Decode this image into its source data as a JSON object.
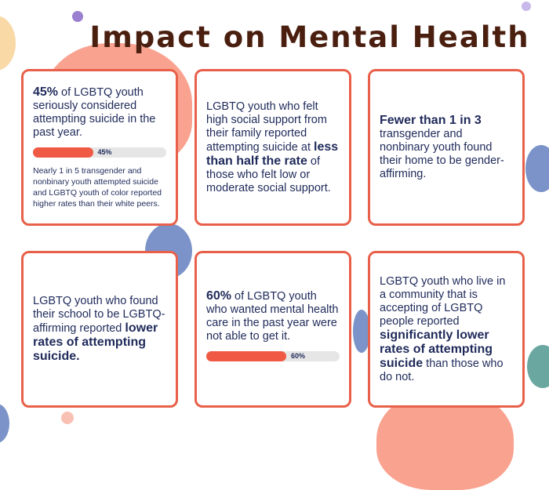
{
  "title": "Impact on Mental Health",
  "colors": {
    "accent": "#e8604a",
    "title": "#4a1f0f",
    "text": "#1f2a5a",
    "bar_fill": "#f05a45",
    "bar_track": "#e6e6e6"
  },
  "cards": [
    {
      "stat": "45%",
      "text": " of LGBTQ youth seriously considered attempting suicide in the past year.",
      "bar_value": 0.45,
      "bar_label": "45%",
      "note": "Nearly 1 in 5 transgender and nonbinary youth attempted suicide and LGBTQ youth of color reported higher rates than their white peers."
    },
    {
      "text_a": "LGBTQ youth who felt high social support from their family reported attempting suicide at ",
      "bold": "less than half the rate",
      "text_b": " of those who felt low or moderate social support."
    },
    {
      "stat": "Fewer than 1 in 3",
      "text": "transgender and nonbinary youth found their home to be gender-affirming."
    },
    {
      "text_a": "LGBTQ youth who found their school to be LGBTQ-affirming reported ",
      "bold": "lower rates of attempting suicide."
    },
    {
      "stat": "60%",
      "text": " of LGBTQ youth who wanted mental health care in the past year were not able to get it.",
      "bar_value": 0.6,
      "bar_label": "60%"
    },
    {
      "text_a": "LGBTQ youth who live in a community that is accepting of LGBTQ people reported ",
      "bold": "significantly lower rates of attempting suicide",
      "text_b": " than those who do not."
    }
  ]
}
